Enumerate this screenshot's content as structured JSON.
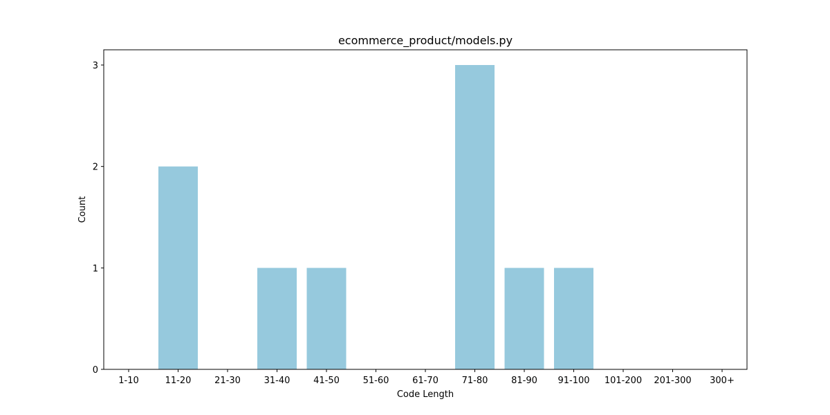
{
  "chart_data": {
    "type": "bar",
    "title": "ecommerce_product/models.py",
    "xlabel": "Code Length",
    "ylabel": "Count",
    "categories": [
      "1-10",
      "11-20",
      "21-30",
      "31-40",
      "41-50",
      "51-60",
      "61-70",
      "71-80",
      "81-90",
      "91-100",
      "101-200",
      "201-300",
      "300+"
    ],
    "values": [
      0,
      2,
      0,
      1,
      1,
      0,
      0,
      3,
      1,
      1,
      0,
      0,
      0
    ],
    "ylim": [
      0,
      3.15
    ],
    "yticks": [
      0,
      1,
      2,
      3
    ],
    "grid": false,
    "bar_color": "#96c9dd"
  }
}
